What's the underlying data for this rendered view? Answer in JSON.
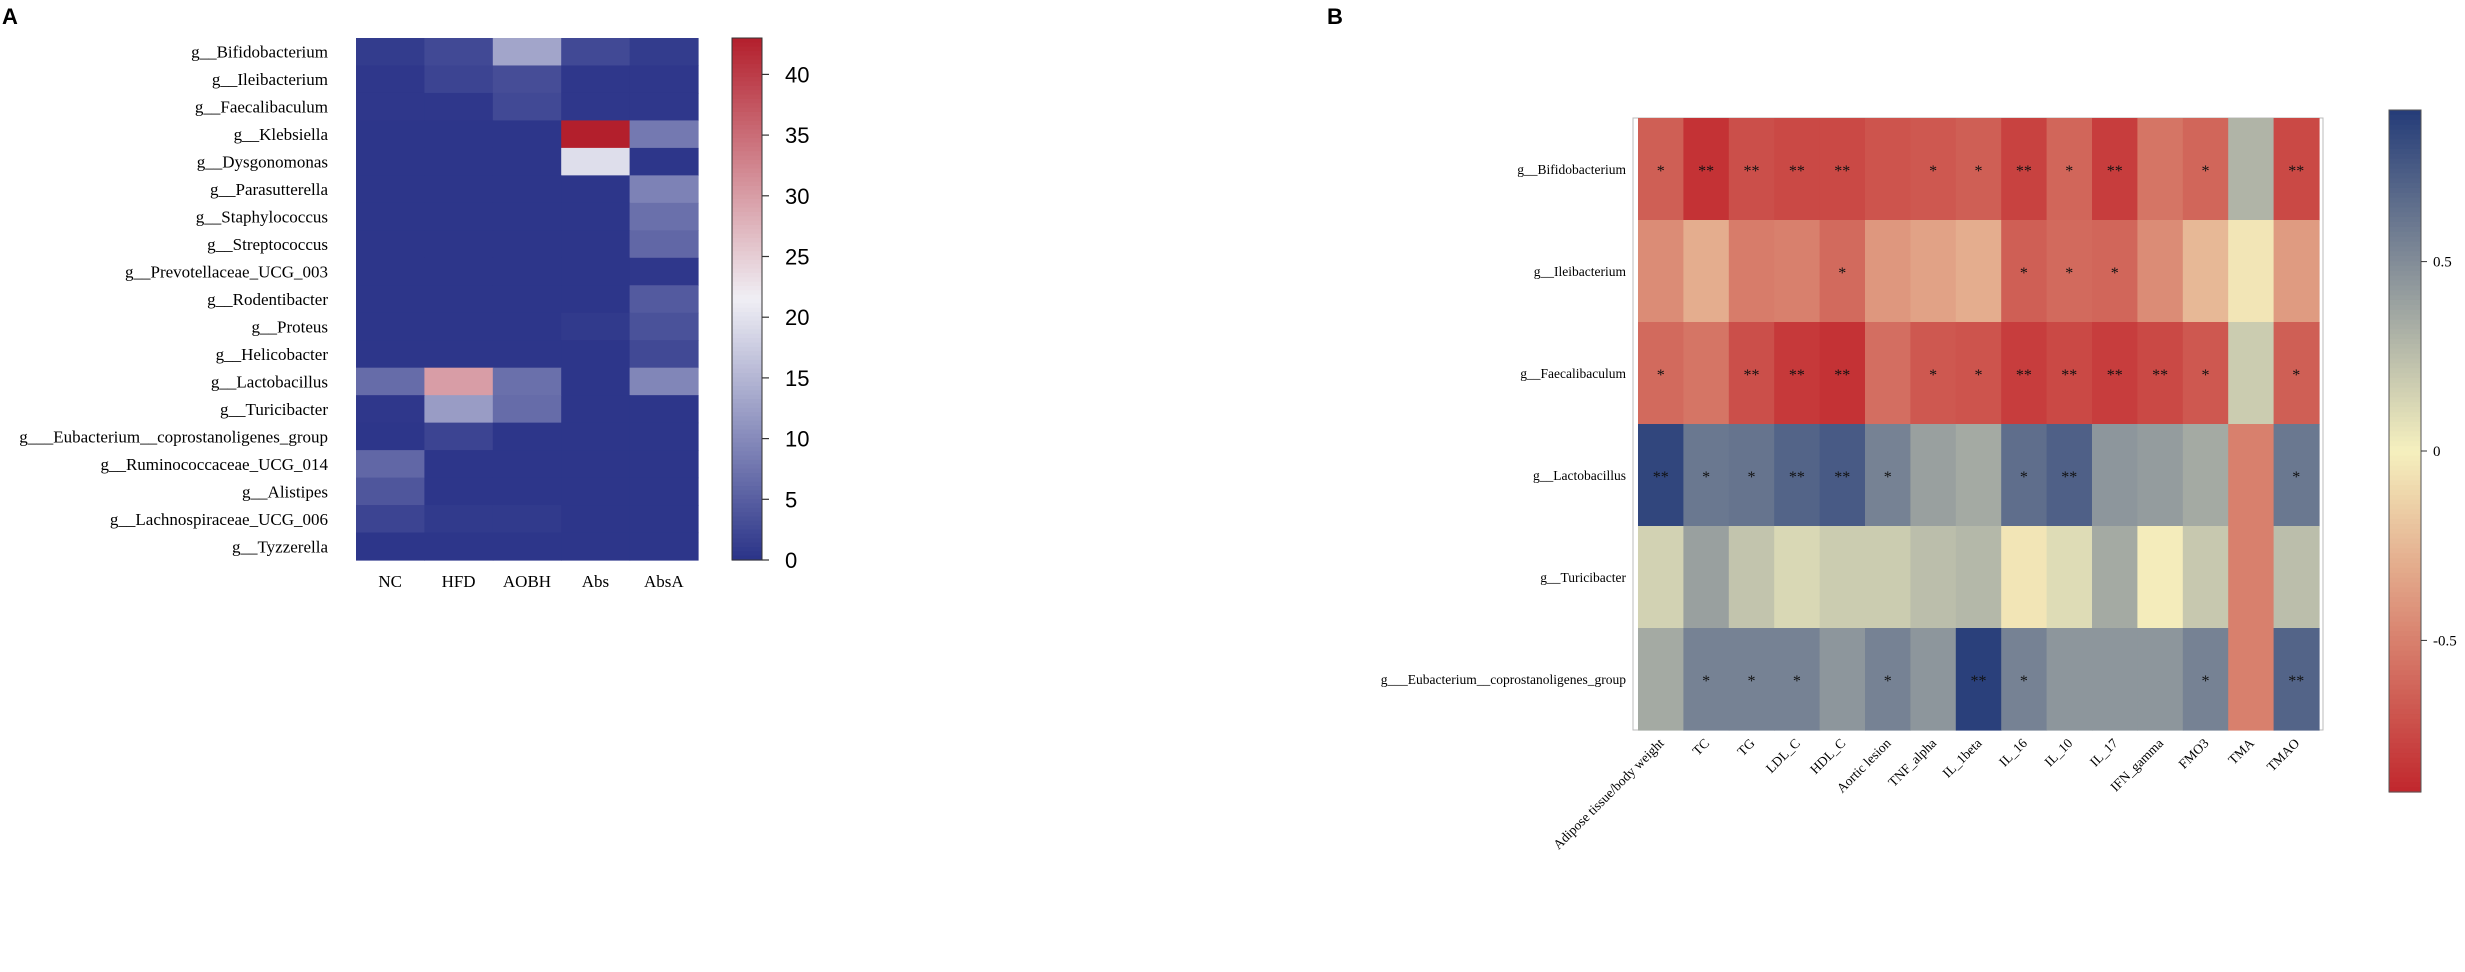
{
  "chart_data": [
    {
      "type": "heatmap",
      "panel_label": "A",
      "rows": [
        "g__Bifidobacterium",
        "g__Ileibacterium",
        "g__Faecalibaculum",
        "g__Klebsiella",
        "g__Dysgonomonas",
        "g__Parasutterella",
        "g__Staphylococcus",
        "g__Streptococcus",
        "g__Prevotellaceae_UCG_003",
        "g__Rodentibacter",
        "g__Proteus",
        "g__Helicobacter",
        "g__Lactobacillus",
        "g__Turicibacter",
        "g___Eubacterium__coprostanoligenes_group",
        "g__Ruminococcaceae_UCG_014",
        "g__Alistipes",
        "g__Lachnospiraceae_UCG_006",
        "g__Tyzzerella"
      ],
      "columns": [
        "NC",
        "HFD",
        "AOBH",
        "Abs",
        "AbsA"
      ],
      "values": [
        [
          1.0,
          2.5,
          13.0,
          2.5,
          1.0
        ],
        [
          0.5,
          2.0,
          3.0,
          0.5,
          0.5
        ],
        [
          0.5,
          0.5,
          2.5,
          0.5,
          0.5
        ],
        [
          0.3,
          0.3,
          0.3,
          43.0,
          8.0
        ],
        [
          0.3,
          0.3,
          0.3,
          19.5,
          0.3
        ],
        [
          0.3,
          0.3,
          0.3,
          0.3,
          9.0
        ],
        [
          0.3,
          0.3,
          0.3,
          0.3,
          7.0
        ],
        [
          0.3,
          0.3,
          0.3,
          0.3,
          6.0
        ],
        [
          0.3,
          0.3,
          0.3,
          0.3,
          0.5
        ],
        [
          0.3,
          0.3,
          0.3,
          0.3,
          4.5
        ],
        [
          0.3,
          0.3,
          0.3,
          0.8,
          3.5
        ],
        [
          0.3,
          0.3,
          0.3,
          0.3,
          2.5
        ],
        [
          6.5,
          30.0,
          7.0,
          0.3,
          9.5
        ],
        [
          0.5,
          12.0,
          6.5,
          0.3,
          0.3
        ],
        [
          0.3,
          2.0,
          0.3,
          0.3,
          0.3
        ],
        [
          6.0,
          0.3,
          0.3,
          0.3,
          0.3
        ],
        [
          4.0,
          0.3,
          0.3,
          0.3,
          0.3
        ],
        [
          2.0,
          0.8,
          0.8,
          0.3,
          0.3
        ],
        [
          0.3,
          0.3,
          0.3,
          0.3,
          0.3
        ]
      ],
      "colorbar": {
        "min": 0,
        "max": 43,
        "ticks": [
          0,
          5,
          10,
          15,
          20,
          25,
          30,
          35,
          40
        ]
      },
      "colors": {
        "low": "#2a3388",
        "mid": "#f0eff5",
        "high": "#b31f2c"
      }
    },
    {
      "type": "heatmap",
      "panel_label": "B",
      "rows": [
        "g__Bifidobacterium",
        "g__Ileibacterium",
        "g__Faecalibaculum",
        "g__Lactobacillus",
        "g__Turicibacter",
        "g___Eubacterium__coprostanoligenes_group"
      ],
      "columns": [
        "Adipose tissue/body weight",
        "TC",
        "TG",
        "LDL_C",
        "HDL_C",
        "Aortic lesion",
        "TNF_alpha",
        "IL_1beta",
        "IL_16",
        "IL_10",
        "IL_17",
        "IFN_gamma",
        "FMO3",
        "TMA",
        "TMAO"
      ],
      "values": [
        [
          -0.65,
          -0.85,
          -0.72,
          -0.75,
          -0.75,
          -0.7,
          -0.68,
          -0.65,
          -0.78,
          -0.62,
          -0.8,
          -0.55,
          -0.62,
          0.3,
          -0.75
        ],
        [
          -0.45,
          -0.3,
          -0.52,
          -0.5,
          -0.6,
          -0.4,
          -0.35,
          -0.3,
          -0.65,
          -0.6,
          -0.62,
          -0.45,
          -0.25,
          -0.05,
          -0.38
        ],
        [
          -0.6,
          -0.55,
          -0.72,
          -0.82,
          -0.85,
          -0.58,
          -0.68,
          -0.7,
          -0.8,
          -0.75,
          -0.8,
          -0.75,
          -0.68,
          0.18,
          -0.65
        ],
        [
          0.85,
          0.6,
          0.62,
          0.7,
          0.75,
          0.55,
          0.4,
          0.35,
          0.65,
          0.72,
          0.45,
          0.42,
          0.35,
          -0.5,
          0.6
        ],
        [
          0.15,
          0.4,
          0.22,
          0.12,
          0.18,
          0.18,
          0.25,
          0.28,
          -0.05,
          0.1,
          0.35,
          -0.02,
          0.2,
          -0.5,
          0.25
        ],
        [
          0.35,
          0.55,
          0.55,
          0.55,
          0.45,
          0.55,
          0.45,
          0.88,
          0.55,
          0.45,
          0.45,
          0.45,
          0.55,
          -0.5,
          0.7
        ]
      ],
      "significance": [
        [
          "*",
          "**",
          "**",
          "**",
          "**",
          "",
          "*",
          "*",
          "**",
          "*",
          "**",
          "",
          "*",
          "",
          "**"
        ],
        [
          "",
          "",
          "",
          "",
          "*",
          "",
          "",
          "",
          "*",
          "*",
          "*",
          "",
          "",
          "",
          ""
        ],
        [
          "*",
          "",
          "**",
          "**",
          "**",
          "",
          "*",
          "*",
          "**",
          "**",
          "**",
          "**",
          "*",
          "",
          "*"
        ],
        [
          "**",
          "*",
          "*",
          "**",
          "**",
          "*",
          "",
          "",
          "*",
          "**",
          "",
          "",
          "",
          "",
          "*"
        ],
        [
          "",
          "",
          "",
          "",
          "",
          "",
          "",
          "",
          "",
          "",
          "",
          "",
          "",
          "",
          ""
        ],
        [
          "",
          "*",
          "*",
          "*",
          "",
          "*",
          "",
          "**",
          "*",
          "",
          "",
          "",
          "*",
          "",
          "**"
        ]
      ],
      "colorbar": {
        "min": -0.9,
        "max": 0.9,
        "ticks": [
          0.5,
          0,
          -0.5
        ],
        "tick_labels": [
          "0.5",
          "0",
          "-0.5"
        ]
      },
      "colors": {
        "low": "#c1272d",
        "mid": "#f5f0be",
        "high": "#253c79"
      }
    }
  ]
}
